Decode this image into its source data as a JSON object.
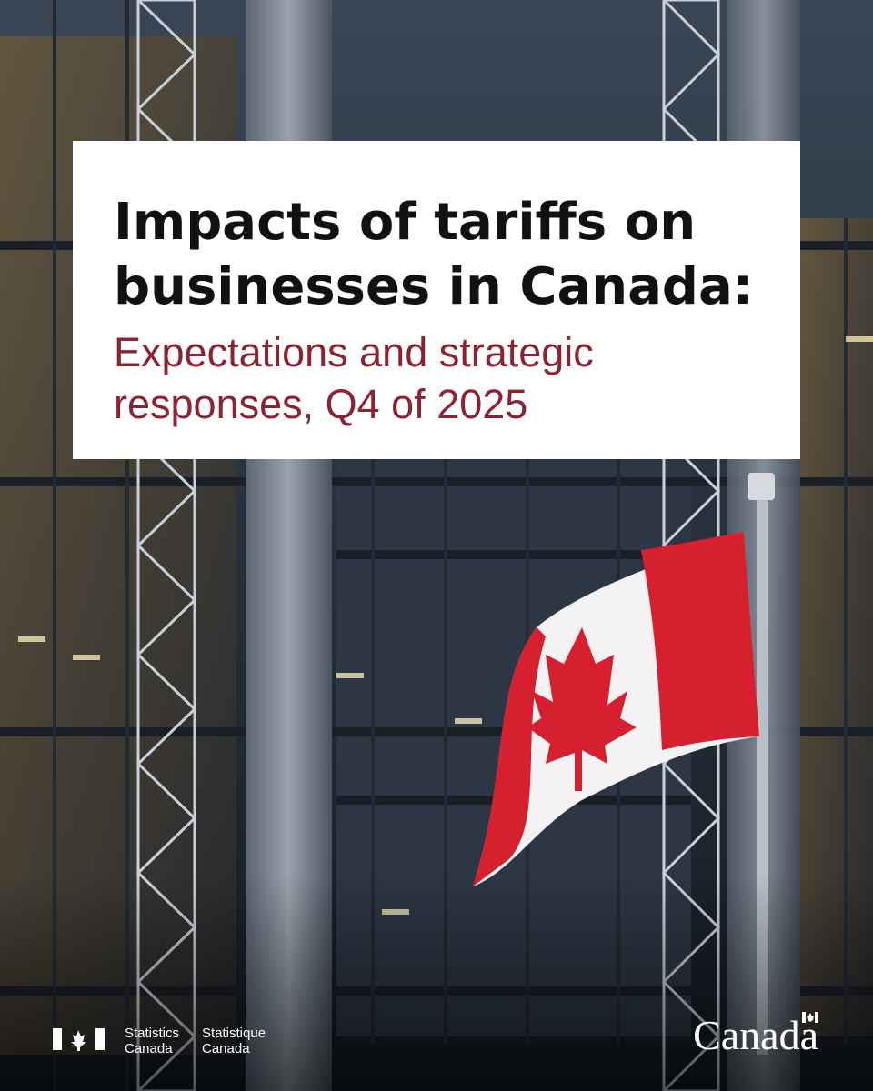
{
  "title": {
    "lines": [
      "Impacts of tariffs on",
      "businesses in Canada:"
    ]
  },
  "subtitle": {
    "lines": [
      "Expectations and strategic",
      "responses, Q4 of 2025"
    ]
  },
  "footer": {
    "english": [
      "Statistics",
      "Canada"
    ],
    "french": [
      "Statistique",
      "Canada"
    ],
    "wordmark": "Canada"
  }
}
